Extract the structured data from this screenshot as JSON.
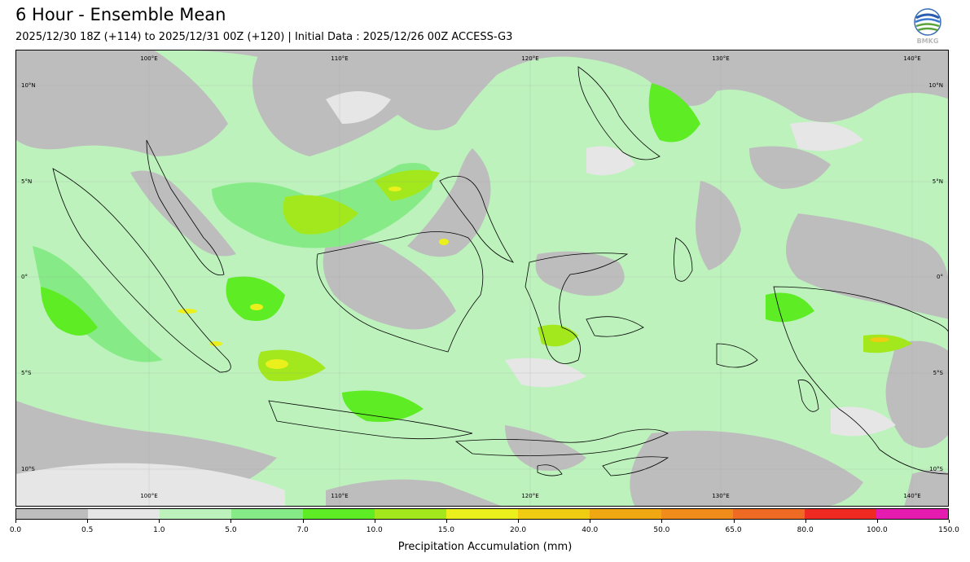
{
  "title": "6 Hour - Ensemble Mean",
  "subtitle": "2025/12/30 18Z (+114) to 2025/12/31 00Z (+120) | Initial Data : 2025/12/26 00Z ACCESS-G3",
  "logo": {
    "text": "BMKG",
    "icon": "bmkg-logo-icon"
  },
  "map": {
    "lon_labels": [
      "100°E",
      "110°E",
      "120°E",
      "130°E",
      "140°E"
    ],
    "lat_labels": [
      "10°N",
      "5°N",
      "0°",
      "5°S",
      "10°S"
    ],
    "colors": {
      "land_outline": "#000000",
      "no_rain": "#bdbdbd",
      "light": "#e6e6e6"
    }
  },
  "colorbar": {
    "label": "Precipitation Accumulation (mm)",
    "ticks": [
      "0.0",
      "0.5",
      "1.0",
      "5.0",
      "7.0",
      "10.0",
      "15.0",
      "20.0",
      "40.0",
      "50.0",
      "65.0",
      "80.0",
      "100.0",
      "150.0"
    ],
    "colors": [
      "#bdbdbd",
      "#e6e6e6",
      "#bdf2bd",
      "#86eb86",
      "#5eec25",
      "#a2e81c",
      "#ebf01c",
      "#f0cc12",
      "#f0a812",
      "#f08c1a",
      "#ef6a22",
      "#ee2a22",
      "#e61cb0"
    ]
  }
}
